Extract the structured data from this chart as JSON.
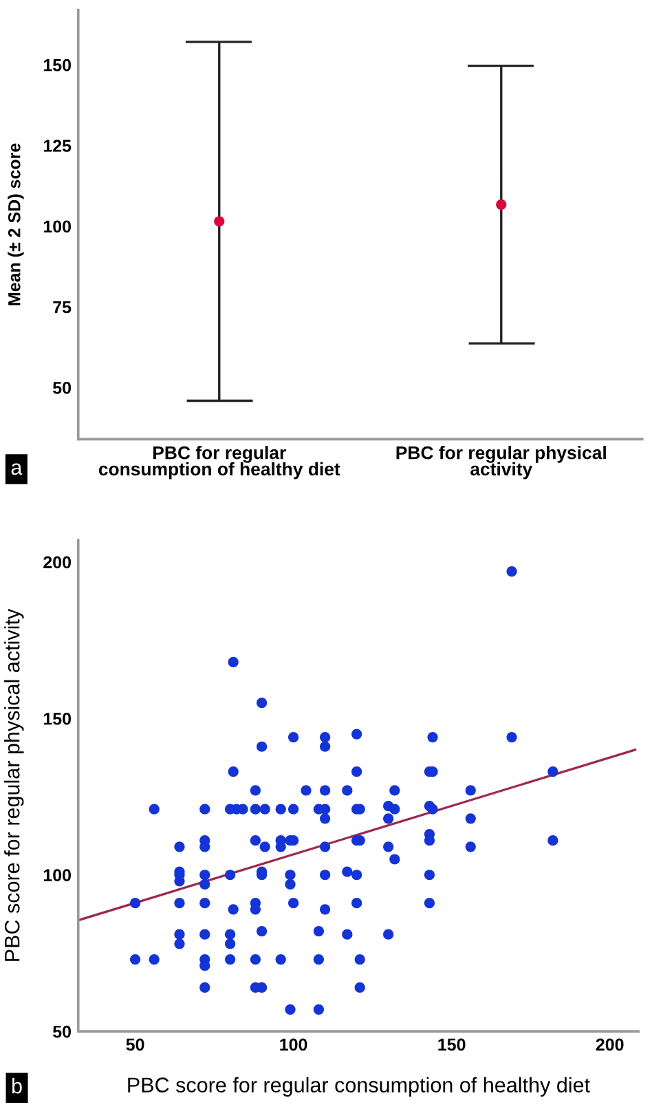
{
  "chart_data": [
    {
      "type": "scatter",
      "ylabel": "Mean (± 2 SD) score",
      "categories": [
        "PBC for regular\nconsumption of healthy diet",
        "PBC for regular physical\nactivity"
      ],
      "color": "#d6083c",
      "values": [
        101.5,
        106.7
      ],
      "errors": [
        55.6,
        43.0
      ],
      "ylim": [
        34,
        167
      ],
      "yticks": [
        50,
        75,
        100,
        125,
        150
      ],
      "grid": false,
      "marker": "circle",
      "annotations": [
        "a"
      ]
    },
    {
      "type": "scatter",
      "xlabel": "PBC score for regular consumption of healthy diet",
      "ylabel": "PBC score for regular physical activity",
      "series": [
        {
          "type": "scatter",
          "color": "#1434d6",
          "x": [
            81,
            90,
            90,
            100,
            110,
            110,
            120,
            81,
            120,
            88,
            104,
            110,
            117,
            56,
            72,
            80,
            82,
            84,
            88,
            91,
            96,
            100,
            108,
            110,
            120,
            121,
            110,
            72,
            88,
            96,
            99,
            100,
            120,
            121,
            64,
            72,
            91,
            96,
            110,
            64,
            117,
            64,
            72,
            80,
            90,
            99,
            110,
            120,
            90,
            64,
            72,
            99,
            50,
            64,
            72,
            88,
            100,
            120,
            81,
            88,
            110,
            90,
            108,
            64,
            72,
            80,
            117,
            64,
            80,
            50,
            56,
            72,
            80,
            88,
            96,
            108,
            121,
            72,
            72,
            88,
            90,
            121,
            99,
            108,
            144,
            169,
            143,
            144,
            182,
            132,
            156,
            130,
            132,
            143,
            144,
            130,
            156,
            143,
            143,
            182,
            130,
            156,
            132,
            143,
            143,
            130,
            169
          ],
          "values": [
            168,
            155,
            141,
            144,
            144,
            141,
            145,
            133,
            133,
            127,
            127,
            127,
            127,
            121,
            121,
            121,
            121,
            121,
            121,
            121,
            121,
            121,
            121,
            121,
            121,
            121,
            118,
            111,
            111,
            111,
            111,
            111,
            111,
            111,
            109,
            109,
            109,
            109,
            109,
            101,
            101,
            100,
            100,
            100,
            100,
            100,
            100,
            100,
            101,
            98,
            97,
            97,
            91,
            91,
            91,
            91,
            91,
            91,
            89,
            89,
            89,
            82,
            82,
            81,
            81,
            81,
            81,
            78,
            78,
            73,
            73,
            73,
            73,
            73,
            73,
            73,
            73,
            71,
            64,
            64,
            64,
            64,
            57,
            57,
            144,
            144,
            133,
            133,
            133,
            127,
            127,
            122,
            121,
            122,
            121,
            118,
            118,
            113,
            111,
            111,
            109,
            109,
            105,
            100,
            91,
            81,
            197
          ]
        },
        {
          "type": "line",
          "color": "#9e2a4f",
          "x": [
            32,
            208
          ],
          "values": [
            85.5,
            140
          ],
          "marker": "none",
          "line_style": "solid"
        }
      ],
      "xlim": [
        32,
        209
      ],
      "xticks": [
        50,
        100,
        150,
        200
      ],
      "ylim": [
        50,
        207
      ],
      "yticks": [
        50,
        100,
        150,
        200
      ],
      "grid": false,
      "marker": "circle",
      "annotations": [
        "b"
      ]
    }
  ]
}
